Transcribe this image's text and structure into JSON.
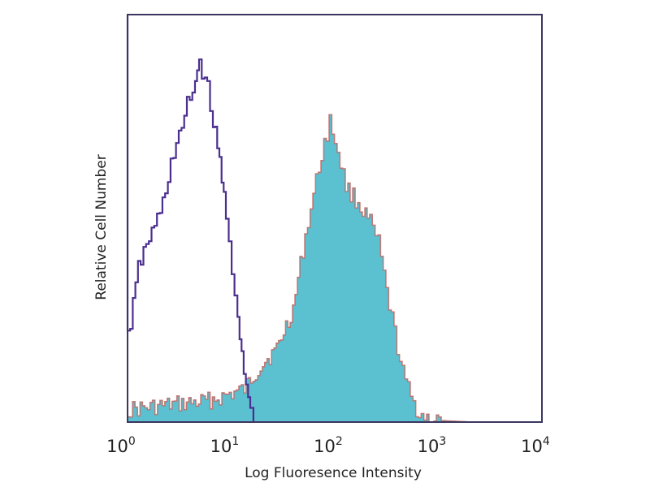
{
  "chart_data": {
    "type": "area",
    "title": "",
    "xlabel": "Log Fluoresence Intensity",
    "ylabel": "Relative Cell Number",
    "x_scale": "log",
    "xlim": [
      1,
      10000
    ],
    "ylim": [
      0,
      100
    ],
    "x_ticks": [
      {
        "base": "10",
        "exp": "0"
      },
      {
        "base": "10",
        "exp": "1"
      },
      {
        "base": "10",
        "exp": "2"
      },
      {
        "base": "10",
        "exp": "3"
      },
      {
        "base": "10",
        "exp": "4"
      }
    ],
    "grid": false,
    "series": [
      {
        "style": "outline",
        "color": "#4b2f8f",
        "points": [
          [
            1.0,
            100
          ],
          [
            1.0,
            23.9
          ],
          [
            1.06,
            23.9
          ],
          [
            1.26,
            37.8
          ],
          [
            1.51,
            43.8
          ],
          [
            1.81,
            47.8
          ],
          [
            2.17,
            53.8
          ],
          [
            2.6,
            63.7
          ],
          [
            3.12,
            69.7
          ],
          [
            3.74,
            77.7
          ],
          [
            4.48,
            83.7
          ],
          [
            4.9,
            88.6
          ],
          [
            5.87,
            81.7
          ],
          [
            6.66,
            73.7
          ],
          [
            7.7,
            63.7
          ],
          [
            8.89,
            51.8
          ],
          [
            10.1,
            37.8
          ],
          [
            11.5,
            23.9
          ],
          [
            13.2,
            11.9
          ],
          [
            15.3,
            3.0
          ],
          [
            16.4,
            0
          ]
        ]
      },
      {
        "style": "filled",
        "color": "#5bc0d0",
        "outline_color": "#c0605a",
        "points": [
          [
            1.0,
            3.0
          ],
          [
            2.17,
            4.0
          ],
          [
            5.36,
            5.0
          ],
          [
            7.7,
            6.0
          ],
          [
            13.2,
            8.0
          ],
          [
            19.0,
            13.9
          ],
          [
            27.2,
            17.9
          ],
          [
            39.1,
            27.9
          ],
          [
            51.3,
            45.8
          ],
          [
            61.4,
            55.8
          ],
          [
            73.6,
            65.7
          ],
          [
            88.2,
            73.7
          ],
          [
            105.6,
            66.7
          ],
          [
            126.5,
            57.8
          ],
          [
            166,
            53.8
          ],
          [
            217,
            48.8
          ],
          [
            261,
            43.8
          ],
          [
            312,
            31.9
          ],
          [
            374,
            21.9
          ],
          [
            448,
            11.9
          ],
          [
            536,
            6.0
          ],
          [
            643,
            2.0
          ],
          [
            769,
            1.0
          ],
          [
            1009,
            0.4
          ],
          [
            2080,
            0
          ]
        ]
      }
    ]
  }
}
